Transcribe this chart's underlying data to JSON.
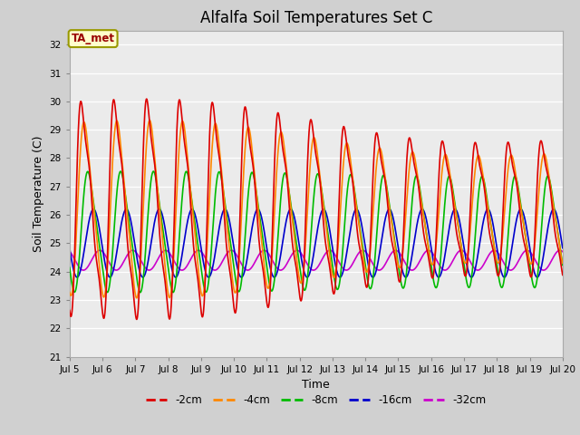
{
  "title": "Alfalfa Soil Temperatures Set C",
  "xlabel": "Time",
  "ylabel": "Soil Temperature (C)",
  "ylim": [
    21.0,
    32.5
  ],
  "yticks": [
    21.0,
    22.0,
    23.0,
    24.0,
    25.0,
    26.0,
    27.0,
    28.0,
    29.0,
    30.0,
    31.0,
    32.0
  ],
  "plot_bg_color": "#ebebeb",
  "fig_bg_color": "#d0d0d0",
  "series": {
    "-2cm": {
      "color": "#dd0000",
      "lw": 1.2
    },
    "-4cm": {
      "color": "#ff8800",
      "lw": 1.2
    },
    "-8cm": {
      "color": "#00bb00",
      "lw": 1.2
    },
    "-16cm": {
      "color": "#0000cc",
      "lw": 1.2
    },
    "-32cm": {
      "color": "#cc00cc",
      "lw": 1.2
    }
  },
  "xtick_labels": [
    "Jul 5",
    "Jul 6",
    "Jul 7",
    "Jul 8",
    "Jul 9",
    "Jul 10",
    "Jul 11",
    "Jul 12",
    "Jul 13",
    "Jul 14",
    "Jul 15",
    "Jul 16",
    "Jul 17",
    "Jul 18",
    "Jul 19",
    "Jul 20"
  ],
  "annotation_text": "TA_met",
  "annotation_color": "#990000",
  "annotation_bg": "#ffffcc",
  "annotation_border": "#999900",
  "title_fontsize": 12
}
